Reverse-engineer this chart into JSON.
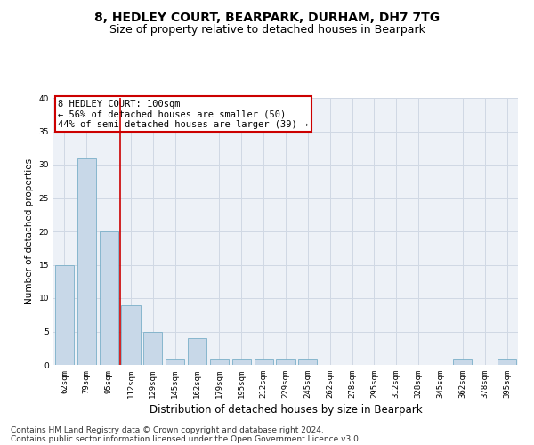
{
  "title1": "8, HEDLEY COURT, BEARPARK, DURHAM, DH7 7TG",
  "title2": "Size of property relative to detached houses in Bearpark",
  "xlabel": "Distribution of detached houses by size in Bearpark",
  "ylabel": "Number of detached properties",
  "categories": [
    "62sqm",
    "79sqm",
    "95sqm",
    "112sqm",
    "129sqm",
    "145sqm",
    "162sqm",
    "179sqm",
    "195sqm",
    "212sqm",
    "229sqm",
    "245sqm",
    "262sqm",
    "278sqm",
    "295sqm",
    "312sqm",
    "328sqm",
    "345sqm",
    "362sqm",
    "378sqm",
    "395sqm"
  ],
  "values": [
    15,
    31,
    20,
    9,
    5,
    1,
    4,
    1,
    1,
    1,
    1,
    1,
    0,
    0,
    0,
    0,
    0,
    0,
    1,
    0,
    1
  ],
  "bar_color": "#c8d8e8",
  "bar_edge_color": "#7aafc8",
  "grid_color": "#d0d8e4",
  "bg_color": "#edf1f7",
  "red_line_x": 2.5,
  "annotation_text": "8 HEDLEY COURT: 100sqm\n← 56% of detached houses are smaller (50)\n44% of semi-detached houses are larger (39) →",
  "annotation_box_color": "#ffffff",
  "annotation_box_edge_color": "#cc0000",
  "ylim": [
    0,
    40
  ],
  "yticks": [
    0,
    5,
    10,
    15,
    20,
    25,
    30,
    35,
    40
  ],
  "footnote1": "Contains HM Land Registry data © Crown copyright and database right 2024.",
  "footnote2": "Contains public sector information licensed under the Open Government Licence v3.0.",
  "title1_fontsize": 10,
  "title2_fontsize": 9,
  "xlabel_fontsize": 8.5,
  "ylabel_fontsize": 7.5,
  "tick_fontsize": 6.5,
  "annot_fontsize": 7.5,
  "footnote_fontsize": 6.5
}
